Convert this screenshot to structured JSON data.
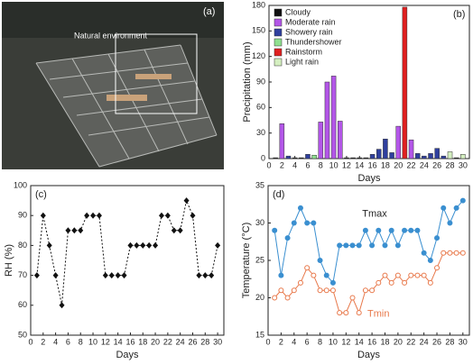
{
  "photo": {
    "label": "(a)",
    "annotation": "Natural environment"
  },
  "chart_data": [
    {
      "type": "bar",
      "panel": "(b)",
      "xlabel": "Days",
      "ylabel": "Precipitation (mm)",
      "x": [
        1,
        2,
        3,
        4,
        5,
        6,
        7,
        8,
        9,
        10,
        11,
        12,
        13,
        14,
        15,
        16,
        17,
        18,
        19,
        20,
        21,
        22,
        23,
        24,
        25,
        26,
        27,
        28,
        29,
        30
      ],
      "xlim": [
        0,
        31
      ],
      "xticks": [
        0,
        2,
        4,
        6,
        8,
        10,
        12,
        14,
        16,
        18,
        20,
        22,
        24,
        26,
        28,
        30
      ],
      "ylim": [
        0,
        180
      ],
      "yticks": [
        0,
        30,
        60,
        90,
        120,
        150,
        180
      ],
      "legend": "upper left",
      "series": [
        {
          "name": "Cloudy",
          "color": "#111111",
          "values": [
            1,
            null,
            null,
            1,
            1,
            null,
            null,
            null,
            null,
            null,
            null,
            1,
            1,
            1,
            1,
            null,
            null,
            null,
            null,
            null,
            null,
            null,
            null,
            null,
            null,
            null,
            null,
            null,
            1,
            null
          ]
        },
        {
          "name": "Moderate rain",
          "color": "#b356e8",
          "values": [
            null,
            41,
            null,
            null,
            null,
            null,
            null,
            43,
            90,
            97,
            44,
            null,
            null,
            null,
            null,
            null,
            null,
            null,
            null,
            38,
            null,
            22,
            null,
            null,
            null,
            null,
            null,
            null,
            null,
            null
          ]
        },
        {
          "name": "Showery rain",
          "color": "#2f3f9e",
          "values": [
            null,
            null,
            3,
            null,
            null,
            5,
            null,
            null,
            null,
            null,
            null,
            null,
            null,
            null,
            null,
            5,
            11,
            23,
            7,
            null,
            null,
            null,
            6,
            3,
            6,
            12,
            3,
            null,
            null,
            null
          ]
        },
        {
          "name": "Thundershower",
          "color": "#8fe08f",
          "values": [
            null,
            null,
            null,
            null,
            null,
            null,
            4,
            null,
            null,
            null,
            null,
            null,
            null,
            null,
            null,
            null,
            null,
            null,
            null,
            null,
            null,
            null,
            null,
            null,
            null,
            null,
            null,
            null,
            null,
            null
          ]
        },
        {
          "name": "Rainstorm",
          "color": "#e02020",
          "values": [
            null,
            null,
            null,
            null,
            null,
            null,
            null,
            null,
            null,
            null,
            null,
            null,
            null,
            null,
            null,
            null,
            null,
            null,
            null,
            null,
            178,
            null,
            null,
            null,
            null,
            null,
            null,
            null,
            null,
            null
          ]
        },
        {
          "name": "Light rain",
          "color": "#d4efc0",
          "values": [
            null,
            null,
            null,
            null,
            null,
            null,
            null,
            null,
            null,
            null,
            null,
            null,
            null,
            null,
            null,
            null,
            null,
            null,
            null,
            null,
            null,
            null,
            null,
            null,
            null,
            null,
            null,
            8,
            null,
            5
          ]
        }
      ]
    },
    {
      "type": "line",
      "panel": "(c)",
      "xlabel": "Days",
      "ylabel": "RH (%)",
      "x": [
        1,
        2,
        3,
        4,
        5,
        6,
        7,
        8,
        9,
        10,
        11,
        12,
        13,
        14,
        15,
        16,
        17,
        18,
        19,
        20,
        21,
        22,
        23,
        24,
        25,
        26,
        27,
        28,
        29,
        30
      ],
      "xlim": [
        0,
        31
      ],
      "xticks": [
        0,
        2,
        4,
        6,
        8,
        10,
        12,
        14,
        16,
        18,
        20,
        22,
        24,
        26,
        28,
        30
      ],
      "ylim": [
        50,
        100
      ],
      "yticks": [
        50,
        60,
        70,
        80,
        90,
        100
      ],
      "series": [
        {
          "color": "#111111",
          "marker": "diamond",
          "linestyle": "dashed",
          "marker_fill": true,
          "values": [
            70,
            90,
            80,
            70,
            60,
            85,
            85,
            85,
            90,
            90,
            90,
            70,
            70,
            70,
            70,
            80,
            80,
            80,
            80,
            80,
            90,
            90,
            85,
            85,
            95,
            90,
            70,
            70,
            70,
            80
          ]
        }
      ]
    },
    {
      "type": "line",
      "panel": "(d)",
      "xlabel": "Days",
      "ylabel": "Temperature (°C)",
      "x": [
        1,
        2,
        3,
        4,
        5,
        6,
        7,
        8,
        9,
        10,
        11,
        12,
        13,
        14,
        15,
        16,
        17,
        18,
        19,
        20,
        21,
        22,
        23,
        24,
        25,
        26,
        27,
        28,
        29,
        30
      ],
      "xlim": [
        0,
        31
      ],
      "xticks": [
        0,
        2,
        4,
        6,
        8,
        10,
        12,
        14,
        16,
        18,
        20,
        22,
        24,
        26,
        28,
        30
      ],
      "ylim": [
        15,
        35
      ],
      "yticks": [
        15,
        20,
        25,
        30,
        35
      ],
      "series": [
        {
          "name": "Tmax",
          "color": "#3a8fd0",
          "marker": "circle",
          "linestyle": "solid",
          "marker_fill": true,
          "values": [
            29,
            23,
            28,
            30,
            32,
            30,
            30,
            25,
            23,
            22,
            27,
            27,
            27,
            27,
            29,
            27,
            29,
            27,
            29,
            27,
            29,
            29,
            29,
            26,
            25,
            28,
            32,
            30,
            32,
            33
          ]
        },
        {
          "name": "Tmin",
          "color": "#e8784a",
          "marker": "circle",
          "linestyle": "solid",
          "marker_fill": false,
          "values": [
            20,
            21,
            20,
            21,
            22,
            24,
            23,
            21,
            21,
            21,
            18,
            18,
            20,
            18,
            21,
            21,
            22,
            23,
            22,
            23,
            22,
            23,
            23,
            23,
            22,
            24,
            26,
            26,
            26,
            26
          ]
        }
      ]
    }
  ]
}
